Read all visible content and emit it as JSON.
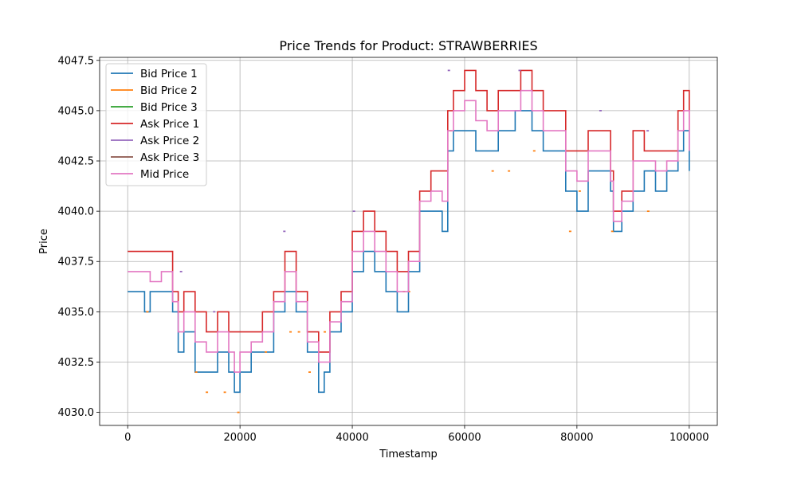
{
  "chart_data": {
    "type": "line",
    "title": "Price Trends for Product: STRAWBERRIES",
    "xlabel": "Timestamp",
    "ylabel": "Price",
    "xlim": [
      -5000,
      105000
    ],
    "ylim": [
      4029.35,
      4047.65
    ],
    "xticks": [
      0,
      20000,
      40000,
      60000,
      80000,
      100000
    ],
    "xtick_labels": [
      "0",
      "20000",
      "40000",
      "60000",
      "80000",
      "100000"
    ],
    "yticks": [
      4030.0,
      4032.5,
      4035.0,
      4037.5,
      4040.0,
      4042.5,
      4045.0,
      4047.5
    ],
    "ytick_labels": [
      "4030.0",
      "4032.5",
      "4035.0",
      "4037.5",
      "4040.0",
      "4042.5",
      "4045.0",
      "4047.5"
    ],
    "grid": true,
    "legend_position": "top-left",
    "series": [
      {
        "name": "Bid Price 1",
        "color": "#1f77b4",
        "style": "line",
        "x": [
          0,
          2000,
          3000,
          4000,
          6000,
          8000,
          9000,
          10000,
          12000,
          14000,
          16000,
          18000,
          19000,
          20000,
          22000,
          24000,
          26000,
          28000,
          30000,
          32000,
          34000,
          35000,
          36000,
          38000,
          40000,
          42000,
          44000,
          46000,
          48000,
          50000,
          52000,
          54000,
          56000,
          57000,
          58000,
          60000,
          62000,
          64000,
          66000,
          68000,
          69000,
          70000,
          72000,
          74000,
          76000,
          78000,
          80000,
          82000,
          84000,
          86000,
          86500,
          88000,
          90000,
          92000,
          94000,
          96000,
          98000,
          99000,
          100000
        ],
        "y": [
          4036,
          4036,
          4035,
          4036,
          4036,
          4035,
          4033,
          4034,
          4032,
          4032,
          4033,
          4032,
          4031,
          4032,
          4033,
          4033,
          4035,
          4036,
          4035,
          4033,
          4031,
          4032,
          4034,
          4035,
          4037,
          4038,
          4037,
          4036,
          4035,
          4037,
          4040,
          4040,
          4039,
          4043,
          4044,
          4044,
          4043,
          4043,
          4044,
          4044,
          4045,
          4045,
          4044,
          4043,
          4043,
          4041,
          4040,
          4042,
          4042,
          4041,
          4039,
          4040,
          4041,
          4042,
          4041,
          4042,
          4043,
          4044,
          4042
        ]
      },
      {
        "name": "Bid Price 2",
        "color": "#ff7f0e",
        "style": "points",
        "x": [
          3500,
          12200,
          14100,
          17300,
          19700,
          24600,
          29000,
          30500,
          32400,
          35100,
          49200,
          50100,
          57500,
          65000,
          67900,
          72400,
          78800,
          80500,
          86300,
          92700
        ],
        "y": [
          4035,
          4032,
          4031,
          4031,
          4030,
          4033,
          4034,
          4034,
          4032,
          4034,
          4036,
          4036,
          4044,
          4042,
          4042,
          4043,
          4039,
          4041,
          4039,
          4040
        ]
      },
      {
        "name": "Bid Price 3",
        "color": "#2ca02c",
        "style": "points",
        "x": [],
        "y": []
      },
      {
        "name": "Ask Price 1",
        "color": "#d62728",
        "style": "line",
        "x": [
          0,
          2000,
          4000,
          6000,
          8000,
          9000,
          10000,
          12000,
          14000,
          16000,
          18000,
          20000,
          22000,
          24000,
          26000,
          28000,
          30000,
          32000,
          34000,
          36000,
          38000,
          40000,
          42000,
          44000,
          46000,
          48000,
          50000,
          52000,
          54000,
          56000,
          57000,
          58000,
          60000,
          62000,
          64000,
          66000,
          68000,
          70000,
          72000,
          74000,
          76000,
          78000,
          80000,
          82000,
          84000,
          86000,
          86500,
          88000,
          90000,
          92000,
          94000,
          96000,
          98000,
          99000,
          100000
        ],
        "y": [
          4038,
          4038,
          4038,
          4038,
          4036,
          4035,
          4036,
          4035,
          4034,
          4035,
          4034,
          4034,
          4034,
          4035,
          4036,
          4038,
          4036,
          4034,
          4033,
          4035,
          4036,
          4039,
          4040,
          4039,
          4038,
          4037,
          4038,
          4041,
          4042,
          4042,
          4045,
          4046,
          4047,
          4046,
          4045,
          4046,
          4046,
          4047,
          4046,
          4045,
          4045,
          4043,
          4043,
          4044,
          4044,
          4042,
          4040,
          4041,
          4044,
          4043,
          4043,
          4043,
          4045,
          4046,
          4044
        ]
      },
      {
        "name": "Ask Price 2",
        "color": "#9467bd",
        "style": "points",
        "x": [
          9500,
          15400,
          27900,
          40300,
          57200,
          69800,
          84200,
          92600
        ],
        "y": [
          4037,
          4035,
          4039,
          4040,
          4047,
          4047,
          4045,
          4044
        ]
      },
      {
        "name": "Ask Price 3",
        "color": "#8c564b",
        "style": "points",
        "x": [],
        "y": []
      },
      {
        "name": "Mid Price",
        "color": "#e377c2",
        "style": "line",
        "x": [
          0,
          2000,
          4000,
          6000,
          8000,
          9000,
          10000,
          12000,
          14000,
          16000,
          18000,
          19000,
          20000,
          22000,
          24000,
          26000,
          28000,
          30000,
          32000,
          34000,
          36000,
          38000,
          40000,
          42000,
          44000,
          46000,
          48000,
          50000,
          52000,
          54000,
          56000,
          57000,
          58000,
          60000,
          62000,
          64000,
          66000,
          68000,
          70000,
          72000,
          74000,
          76000,
          78000,
          80000,
          82000,
          84000,
          86000,
          86500,
          88000,
          90000,
          92000,
          94000,
          96000,
          98000,
          99000,
          100000
        ],
        "y": [
          4037,
          4037,
          4036.5,
          4037,
          4035.5,
          4034,
          4035,
          4033.5,
          4033,
          4034,
          4033,
          4032,
          4033,
          4033.5,
          4034,
          4035.5,
          4037,
          4035.5,
          4033.5,
          4032.5,
          4034.5,
          4035.5,
          4038,
          4039,
          4038,
          4037,
          4036,
          4037.5,
          4040.5,
          4041,
          4040.5,
          4044,
          4045,
          4045.5,
          4044.5,
          4044,
          4045,
          4045,
          4046,
          4045,
          4044,
          4044,
          4042,
          4041.5,
          4043,
          4043,
          4041.5,
          4039.5,
          4040.5,
          4042.5,
          4042.5,
          4042,
          4042.5,
          4044,
          4045,
          4043
        ]
      }
    ]
  }
}
